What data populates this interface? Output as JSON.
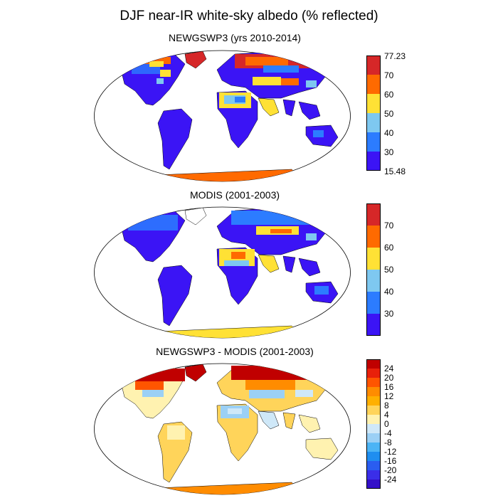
{
  "figure": {
    "title": "DJF near-IR white-sky albedo (% reflected)"
  },
  "panels": [
    {
      "id": "newgswp3",
      "title": "NEWGSWP3 (yrs 2010-2014)",
      "colorbar": {
        "colors": [
          "#d62728",
          "#ff6a00",
          "#ffe135",
          "#7ec8f0",
          "#2c7cff",
          "#3b14f5"
        ],
        "labels": [
          "77.23",
          "70",
          "60",
          "50",
          "40",
          "30",
          "15.48"
        ]
      }
    },
    {
      "id": "modis",
      "title": "MODIS (2001-2003)",
      "colorbar": {
        "colors": [
          "#d62728",
          "#ff6a00",
          "#ffe135",
          "#7ec8f0",
          "#2c7cff",
          "#3b14f5"
        ],
        "labels": [
          "70",
          "60",
          "50",
          "40",
          "30"
        ]
      }
    },
    {
      "id": "difference",
      "title": "NEWGSWP3 - MODIS (2001-2003)",
      "colorbar": {
        "colors": [
          "#c00000",
          "#e8200a",
          "#ff5500",
          "#ff8c00",
          "#ffb000",
          "#ffd45a",
          "#fff2b0",
          "#cfe8f8",
          "#9bd0f5",
          "#4cb4f5",
          "#1f8ef0",
          "#2a5df0",
          "#3a2ee8",
          "#3410c8"
        ],
        "labels": [
          "24",
          "20",
          "16",
          "12",
          "8",
          "4",
          "0",
          "-4",
          "-8",
          "-12",
          "-16",
          "-20",
          "-24"
        ]
      }
    }
  ]
}
